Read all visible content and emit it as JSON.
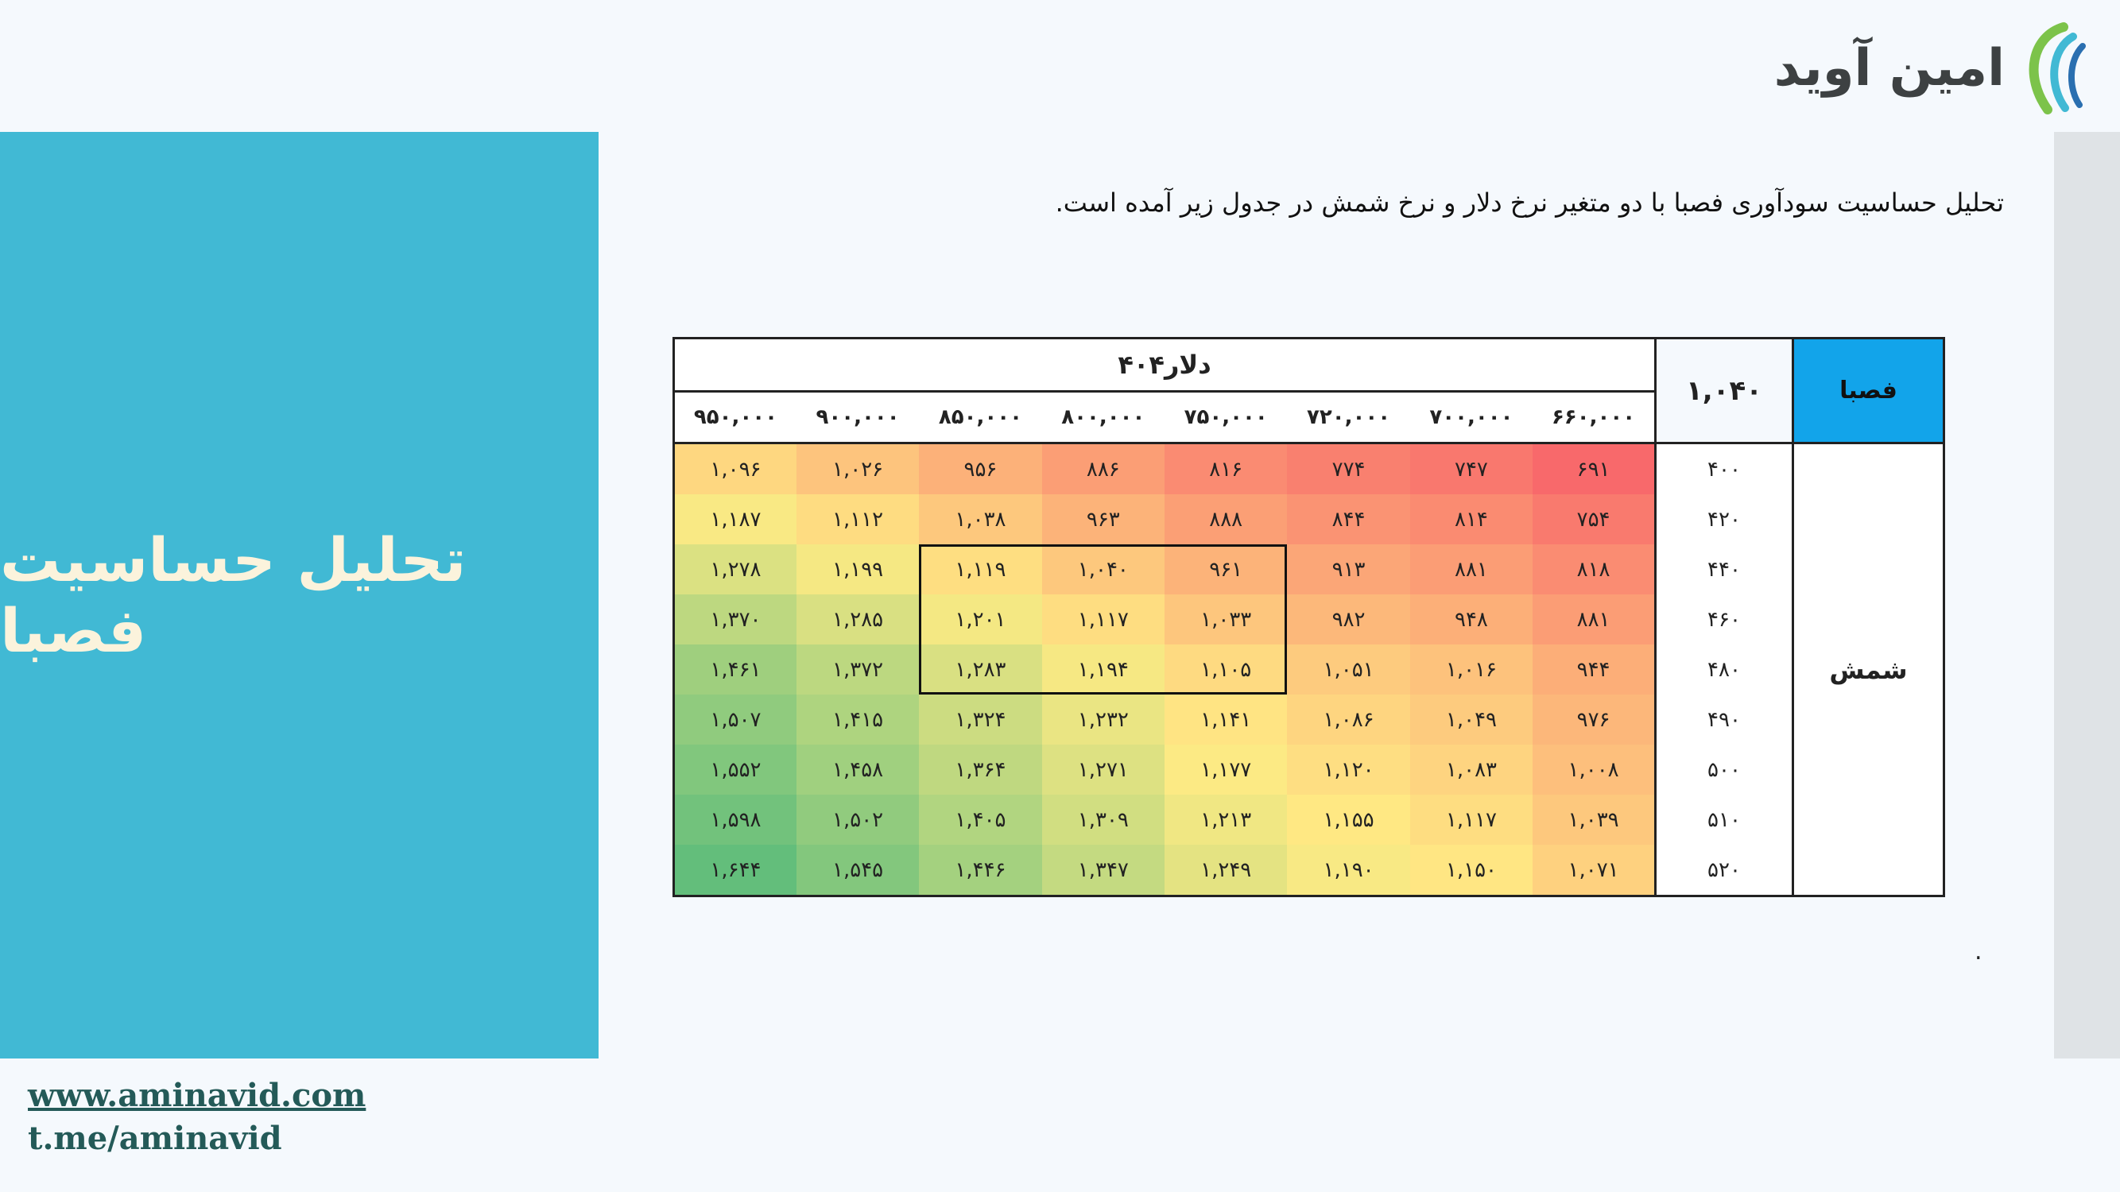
{
  "brand": {
    "logo_text": "امین آوید",
    "accent_colors": [
      "#41b9d4",
      "#7cc34a",
      "#2a6fb0"
    ]
  },
  "side_panel": {
    "title": "تحلیل حساسیت فصبا",
    "bg_color": "#41b9d4"
  },
  "footer": {
    "website": "www.aminavid.com",
    "telegram": "t.me/aminavid"
  },
  "intro_text": "تحلیل حساسیت سودآوری فصبا با دو متغیر نرخ دلار و نرخ شمش در جدول زیر آمده است.",
  "trailing_dot": ".",
  "table": {
    "symbol_label": "فصبا",
    "base_value": "۱,۰۴۰",
    "dollar_title": "دلار۴۰۴",
    "row_variable": "شمش",
    "columns": [
      "۶۶۰,۰۰۰",
      "۷۰۰,۰۰۰",
      "۷۲۰,۰۰۰",
      "۷۵۰,۰۰۰",
      "۸۰۰,۰۰۰",
      "۸۵۰,۰۰۰",
      "۹۰۰,۰۰۰",
      "۹۵۰,۰۰۰"
    ],
    "rows": [
      {
        "label": "۴۰۰",
        "cells": [
          "۶۹۱",
          "۷۴۷",
          "۷۷۴",
          "۸۱۶",
          "۸۸۶",
          "۹۵۶",
          "۱,۰۲۶",
          "۱,۰۹۶"
        ]
      },
      {
        "label": "۴۲۰",
        "cells": [
          "۷۵۴",
          "۸۱۴",
          "۸۴۴",
          "۸۸۸",
          "۹۶۳",
          "۱,۰۳۸",
          "۱,۱۱۲",
          "۱,۱۸۷"
        ]
      },
      {
        "label": "۴۴۰",
        "cells": [
          "۸۱۸",
          "۸۸۱",
          "۹۱۳",
          "۹۶۱",
          "۱,۰۴۰",
          "۱,۱۱۹",
          "۱,۱۹۹",
          "۱,۲۷۸"
        ]
      },
      {
        "label": "۴۶۰",
        "cells": [
          "۸۸۱",
          "۹۴۸",
          "۹۸۲",
          "۱,۰۳۳",
          "۱,۱۱۷",
          "۱,۲۰۱",
          "۱,۲۸۵",
          "۱,۳۷۰"
        ]
      },
      {
        "label": "۴۸۰",
        "cells": [
          "۹۴۴",
          "۱,۰۱۶",
          "۱,۰۵۱",
          "۱,۱۰۵",
          "۱,۱۹۴",
          "۱,۲۸۳",
          "۱,۳۷۲",
          "۱,۴۶۱"
        ]
      },
      {
        "label": "۴۹۰",
        "cells": [
          "۹۷۶",
          "۱,۰۴۹",
          "۱,۰۸۶",
          "۱,۱۴۱",
          "۱,۲۳۲",
          "۱,۳۲۴",
          "۱,۴۱۵",
          "۱,۵۰۷"
        ]
      },
      {
        "label": "۵۰۰",
        "cells": [
          "۱,۰۰۸",
          "۱,۰۸۳",
          "۱,۱۲۰",
          "۱,۱۷۷",
          "۱,۲۷۱",
          "۱,۳۶۴",
          "۱,۴۵۸",
          "۱,۵۵۲"
        ]
      },
      {
        "label": "۵۱۰",
        "cells": [
          "۱,۰۳۹",
          "۱,۱۱۷",
          "۱,۱۵۵",
          "۱,۲۱۳",
          "۱,۳۰۹",
          "۱,۴۰۵",
          "۱,۵۰۲",
          "۱,۵۹۸"
        ]
      },
      {
        "label": "۵۲۰",
        "cells": [
          "۱,۰۷۱",
          "۱,۱۵۰",
          "۱,۱۹۰",
          "۱,۲۴۹",
          "۱,۳۴۷",
          "۱,۴۴۶",
          "۱,۵۴۵",
          "۱,۶۴۴"
        ]
      }
    ],
    "values_numeric": [
      [
        691,
        747,
        774,
        816,
        886,
        956,
        1026,
        1096
      ],
      [
        754,
        814,
        844,
        888,
        963,
        1038,
        1112,
        1187
      ],
      [
        818,
        881,
        913,
        961,
        1040,
        1119,
        1199,
        1278
      ],
      [
        881,
        948,
        982,
        1033,
        1117,
        1201,
        1285,
        1370
      ],
      [
        944,
        1016,
        1051,
        1105,
        1194,
        1283,
        1372,
        1461
      ],
      [
        976,
        1049,
        1086,
        1141,
        1232,
        1324,
        1415,
        1507
      ],
      [
        1008,
        1083,
        1120,
        1177,
        1271,
        1364,
        1458,
        1552
      ],
      [
        1039,
        1117,
        1155,
        1213,
        1309,
        1405,
        1502,
        1598
      ],
      [
        1071,
        1150,
        1190,
        1249,
        1347,
        1446,
        1545,
        1644
      ]
    ],
    "highlight": {
      "row_from": 2,
      "row_to": 4,
      "col_from": 3,
      "col_to": 5
    },
    "colors": {
      "low": "#f8696b",
      "mid": "#ffeb84",
      "high": "#63be7b",
      "header_accent": "#12a4ea"
    }
  }
}
